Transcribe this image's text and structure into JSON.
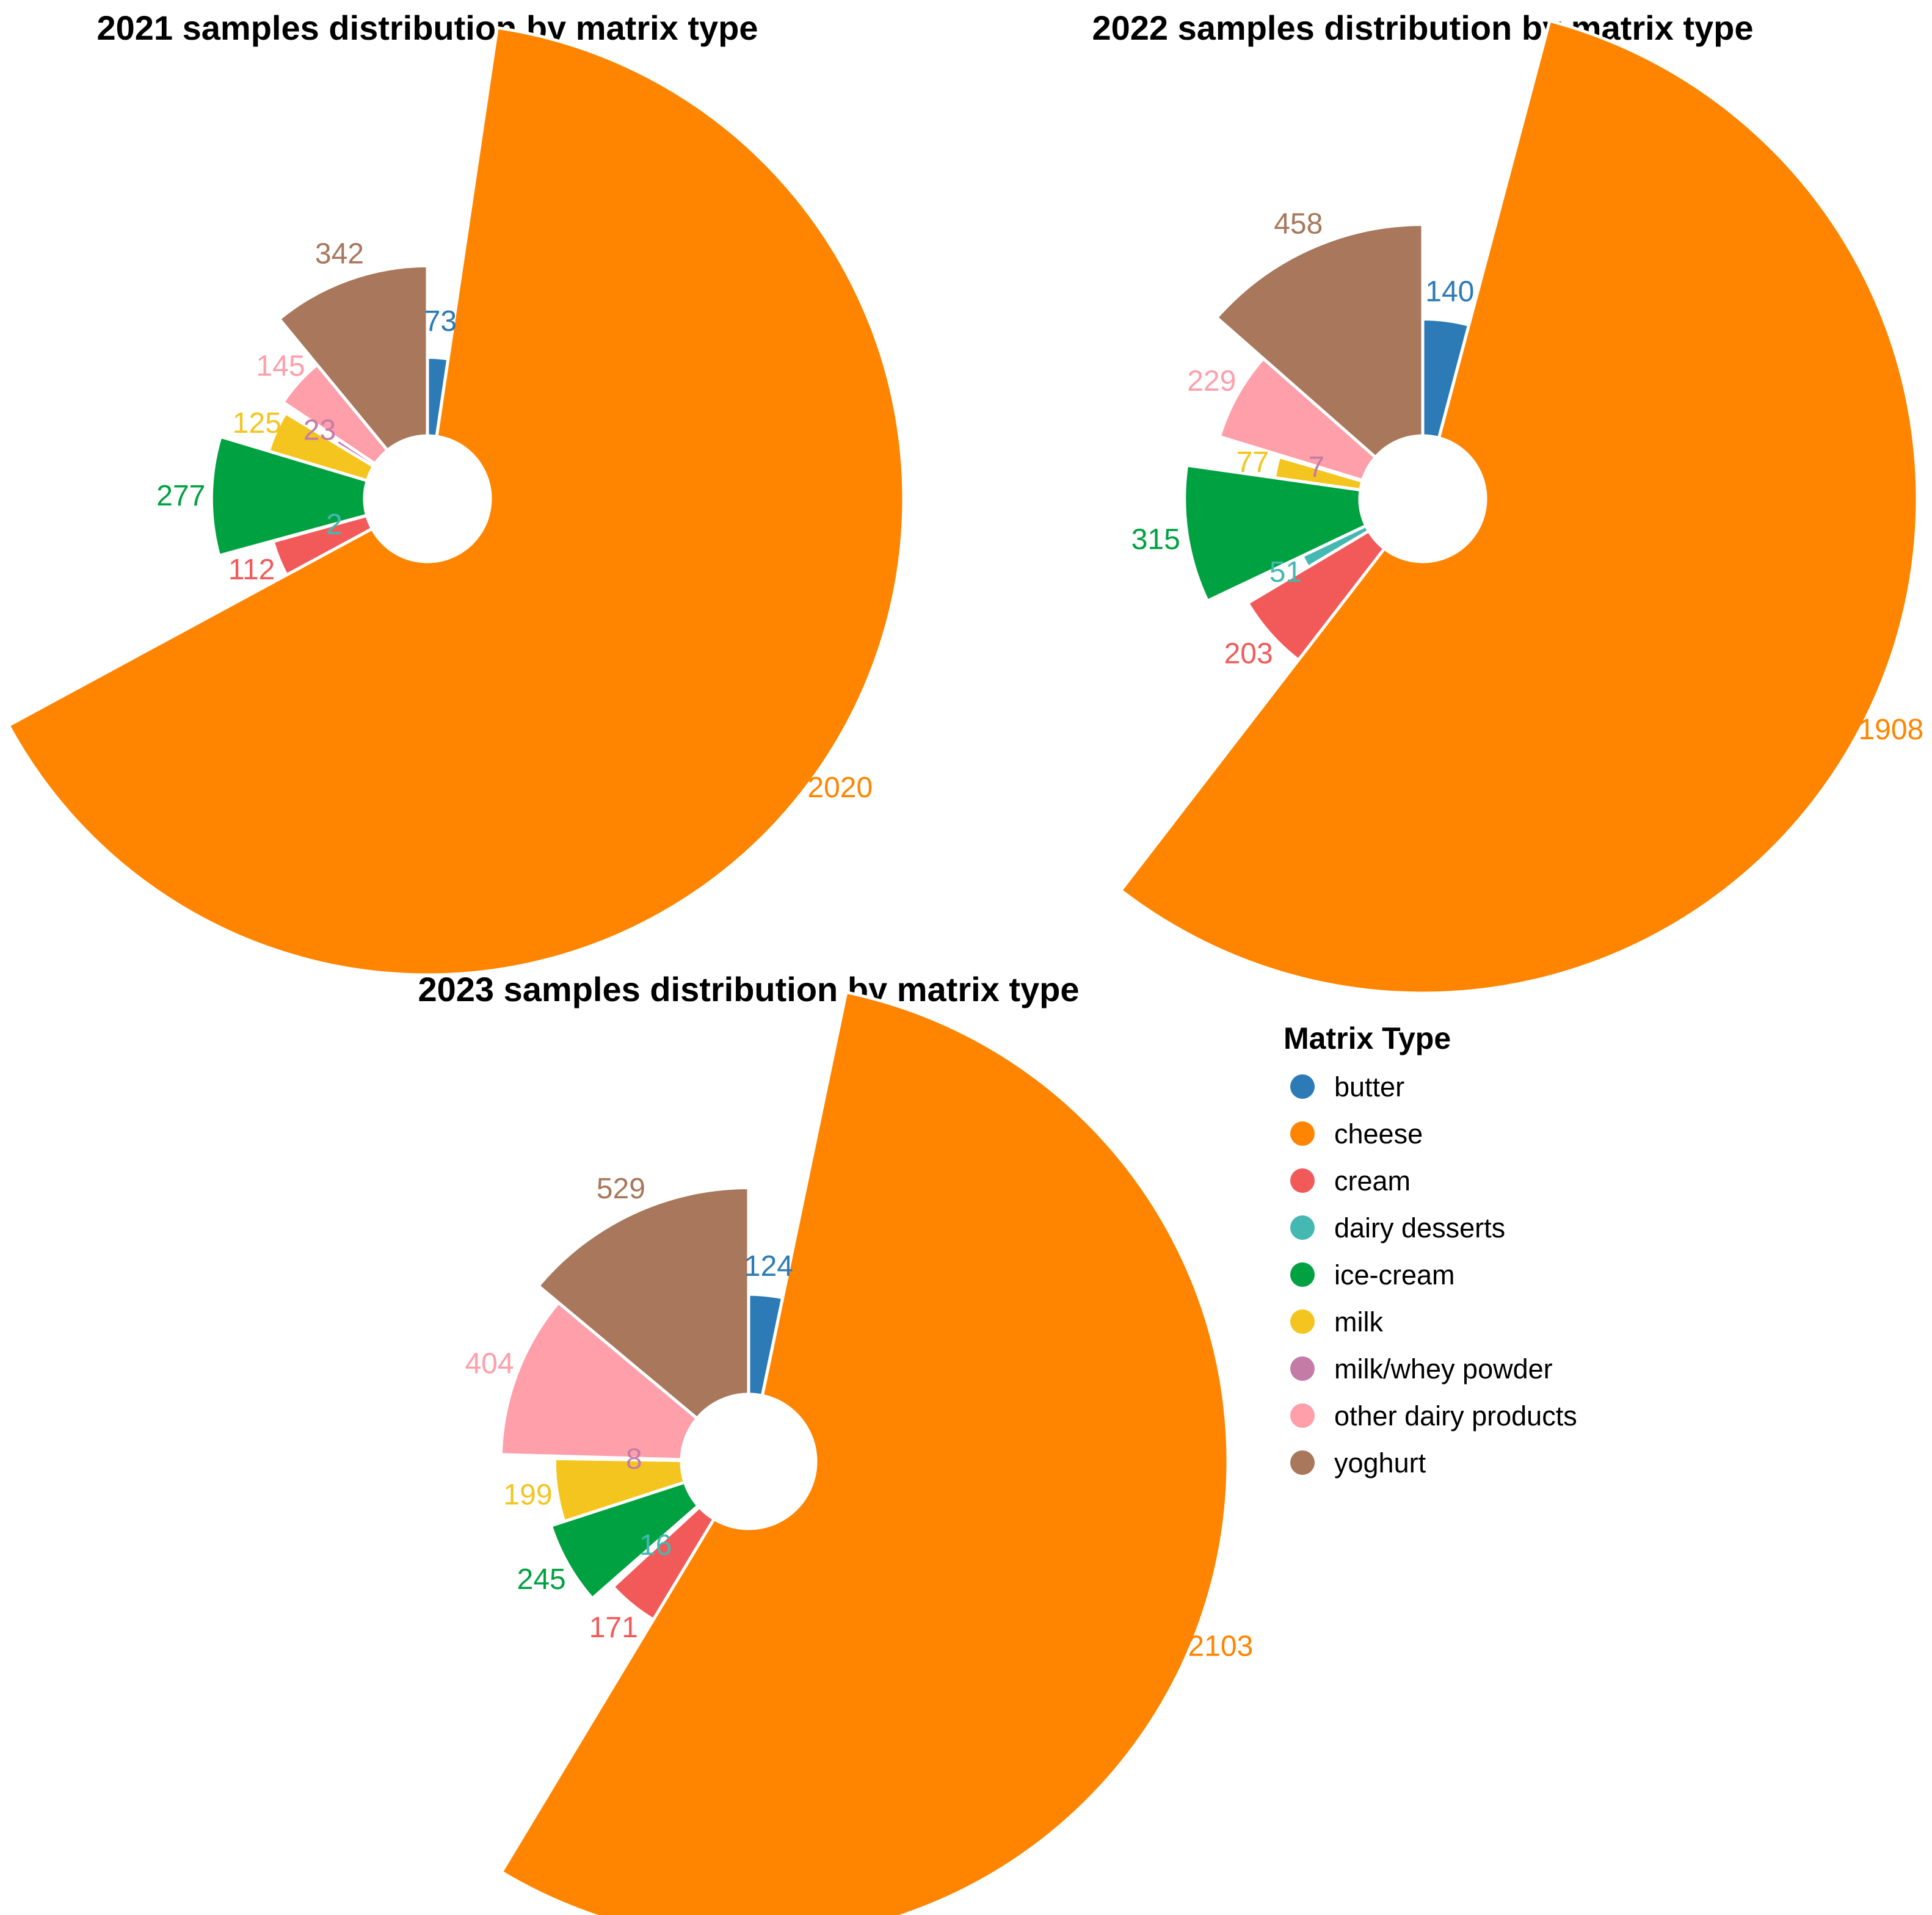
{
  "chart_data": [
    {
      "type": "pie",
      "variant": "variable-radius rose",
      "title": "2021 samples distribution by matrix type",
      "categories": [
        "butter",
        "cheese",
        "cream",
        "dairy desserts",
        "ice-cream",
        "milk",
        "milk/whey powder",
        "other dairy products",
        "yoghurt"
      ],
      "values": [
        73,
        2020,
        112,
        2,
        277,
        125,
        23,
        145,
        342
      ],
      "labels": [
        "73",
        "2020",
        "112",
        "2",
        "277",
        "125",
        "23",
        "145",
        "342"
      ]
    },
    {
      "type": "pie",
      "variant": "variable-radius rose",
      "title": "2022 samples distribution by matrix type",
      "categories": [
        "butter",
        "cheese",
        "cream",
        "dairy desserts",
        "ice-cream",
        "milk",
        "milk/whey powder",
        "other dairy products",
        "yoghurt"
      ],
      "values": [
        140,
        1908,
        203,
        51,
        315,
        77,
        7,
        229,
        458
      ],
      "labels": [
        "140",
        "1908",
        "203",
        "51",
        "315",
        "77",
        "7",
        "229",
        "458"
      ]
    },
    {
      "type": "pie",
      "variant": "variable-radius rose",
      "title": "2023 samples distribution by matrix type",
      "categories": [
        "butter",
        "cheese",
        "cream",
        "dairy desserts",
        "ice-cream",
        "milk",
        "milk/whey powder",
        "other dairy products",
        "yoghurt"
      ],
      "values": [
        124,
        2103,
        171,
        16,
        245,
        199,
        8,
        404,
        529
      ],
      "labels": [
        "124",
        "2103",
        "171",
        "16",
        "245",
        "199",
        "8",
        "404",
        "529"
      ]
    }
  ],
  "legend": {
    "title": "Matrix Type",
    "items": [
      {
        "label": "butter",
        "color": "#2c7bb6"
      },
      {
        "label": "cheese",
        "color": "#ff8500"
      },
      {
        "label": "cream",
        "color": "#f25a5a"
      },
      {
        "label": "dairy desserts",
        "color": "#44b8b1"
      },
      {
        "label": "ice-cream",
        "color": "#00a141"
      },
      {
        "label": "milk",
        "color": "#f5c51f"
      },
      {
        "label": "milk/whey powder",
        "color": "#c47ca7"
      },
      {
        "label": "other dairy products",
        "color": "#fe9faa"
      },
      {
        "label": "yoghurt",
        "color": "#a8775c"
      }
    ]
  }
}
